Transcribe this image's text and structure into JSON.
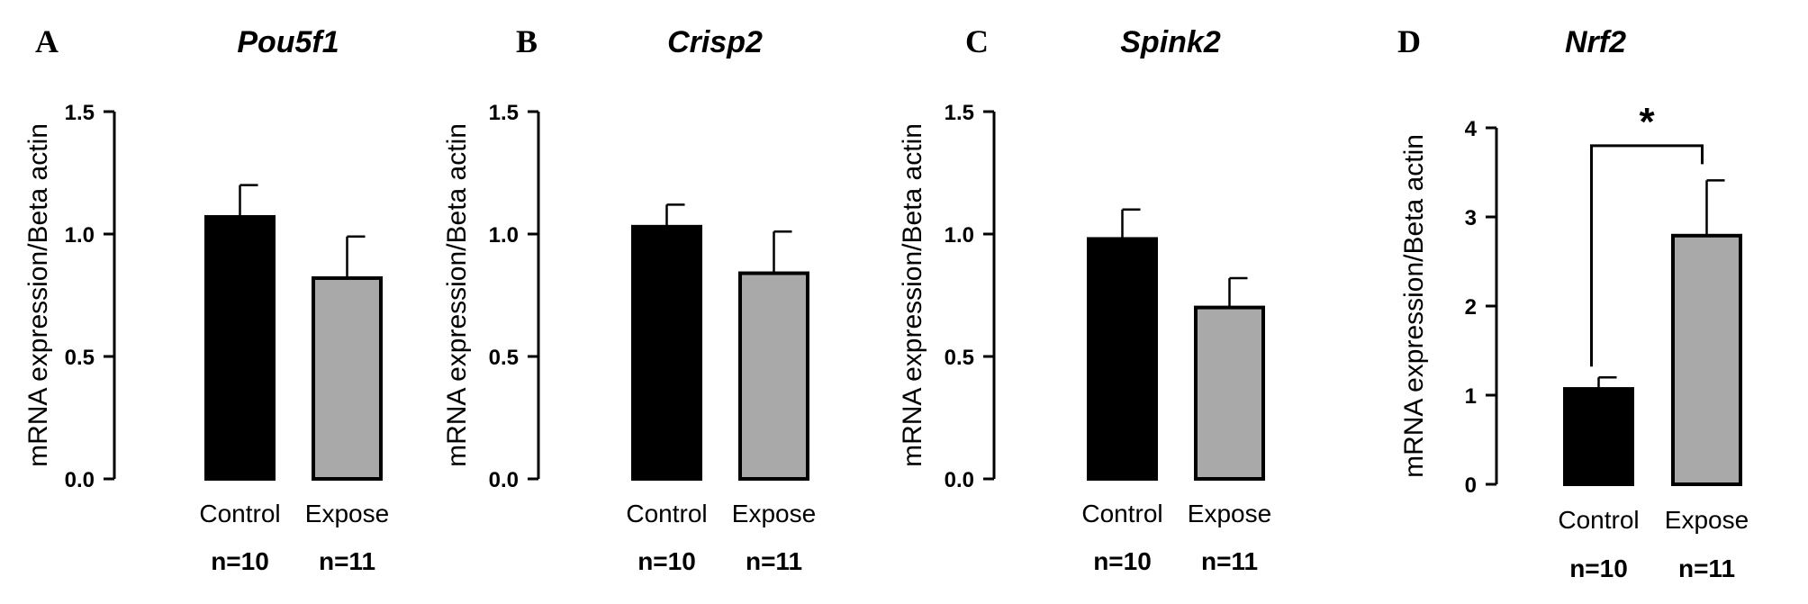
{
  "colors": {
    "control": "#000000",
    "expose": "#a9a9a9",
    "axis": "#000000"
  },
  "chart_data": [
    {
      "type": "bar",
      "panel": "A",
      "title": "Pou5f1",
      "ylabel": "mRNA expression/Beta actin",
      "xlabel": "",
      "categories": [
        "Control",
        "Expose"
      ],
      "n_labels": [
        "n=10",
        "n=11"
      ],
      "values": [
        1.07,
        0.82
      ],
      "errors": [
        0.13,
        0.17
      ],
      "ylim": [
        0,
        1.5
      ],
      "yticks": [
        0,
        0.5,
        1,
        1.5
      ],
      "ytick_labels": [
        "0.0",
        "0.5",
        "1.0",
        "1.5"
      ]
    },
    {
      "type": "bar",
      "panel": "B",
      "title": "Crisp2",
      "ylabel": "mRNA expression/Beta actin",
      "xlabel": "",
      "categories": [
        "Control",
        "Expose"
      ],
      "n_labels": [
        "n=10",
        "n=11"
      ],
      "values": [
        1.03,
        0.84
      ],
      "errors": [
        0.09,
        0.17
      ],
      "ylim": [
        0,
        1.5
      ],
      "yticks": [
        0,
        0.5,
        1,
        1.5
      ],
      "ytick_labels": [
        "0.0",
        "0.5",
        "1.0",
        "1.5"
      ]
    },
    {
      "type": "bar",
      "panel": "C",
      "title": "Spink2",
      "ylabel": "mRNA expression/Beta actin",
      "xlabel": "",
      "categories": [
        "Control",
        "Expose"
      ],
      "n_labels": [
        "n=10",
        "n=11"
      ],
      "values": [
        0.98,
        0.7
      ],
      "errors": [
        0.12,
        0.12
      ],
      "ylim": [
        0,
        1.5
      ],
      "yticks": [
        0,
        0.5,
        1,
        1.5
      ],
      "ytick_labels": [
        "0.0",
        "0.5",
        "1.0",
        "1.5"
      ]
    },
    {
      "type": "bar",
      "panel": "D",
      "title": "Nrf2",
      "ylabel": "mRNA expression/Beta actin",
      "xlabel": "",
      "categories": [
        "Control",
        "Expose"
      ],
      "n_labels": [
        "n=10",
        "n=11"
      ],
      "values": [
        1.07,
        2.79
      ],
      "errors": [
        0.13,
        0.62
      ],
      "ylim": [
        0,
        4
      ],
      "yticks": [
        0,
        1,
        2,
        3,
        4
      ],
      "ytick_labels": [
        "0",
        "1",
        "2",
        "3",
        "4"
      ],
      "significance": {
        "between": [
          "Control",
          "Expose"
        ],
        "label": "*",
        "y": 3.9
      }
    }
  ]
}
